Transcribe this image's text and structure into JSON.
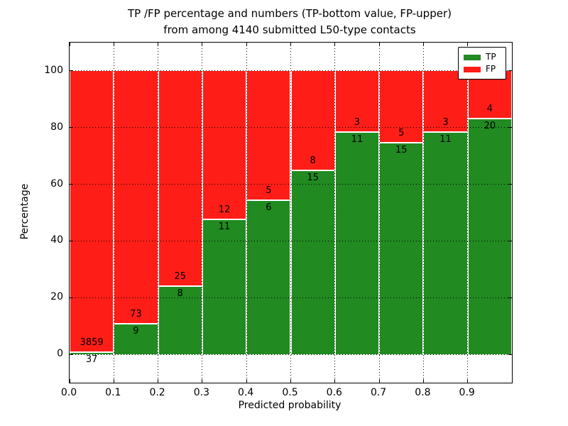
{
  "title": {
    "line1": "TP /FP percentage and numbers (TP-bottom value, FP-upper)",
    "line2": "from among 4140 submitted L50-type contacts"
  },
  "axes": {
    "x_label": "Predicted probability",
    "y_label": "Percentage"
  },
  "legend": {
    "entries": [
      {
        "label": "TP",
        "color": "#218a21"
      },
      {
        "label": "FP",
        "color": "#fe1e17"
      }
    ]
  },
  "chart_data": {
    "type": "bar",
    "stacked": true,
    "normalized_to_percent": true,
    "title": "TP /FP percentage and numbers (TP-bottom value, FP-upper) from among 4140 submitted L50-type contacts",
    "xlabel": "Predicted probability",
    "ylabel": "Percentage",
    "total_contacts": 4140,
    "bins": [
      "0.0-0.1",
      "0.1-0.2",
      "0.2-0.3",
      "0.3-0.4",
      "0.4-0.5",
      "0.5-0.6",
      "0.6-0.7",
      "0.7-0.8",
      "0.8-0.9",
      "0.9-1.0"
    ],
    "series": [
      {
        "name": "TP",
        "color": "#218a21",
        "counts": [
          37,
          9,
          8,
          11,
          6,
          15,
          11,
          15,
          11,
          20
        ]
      },
      {
        "name": "FP",
        "color": "#fe1e17",
        "counts": [
          3859,
          73,
          25,
          12,
          5,
          8,
          3,
          5,
          3,
          4
        ]
      }
    ],
    "x_ticks": [
      "0.0",
      "0.1",
      "0.2",
      "0.3",
      "0.4",
      "0.5",
      "0.6",
      "0.7",
      "0.8",
      "0.9"
    ],
    "y_ticks": [
      "0",
      "20",
      "40",
      "60",
      "80",
      "100"
    ],
    "xlim": [
      0,
      1
    ],
    "ylim": [
      -10,
      110
    ],
    "grid": "dotted, drawn over bars",
    "bar_edge_color": "#ffffff",
    "legend_position": "upper right"
  }
}
